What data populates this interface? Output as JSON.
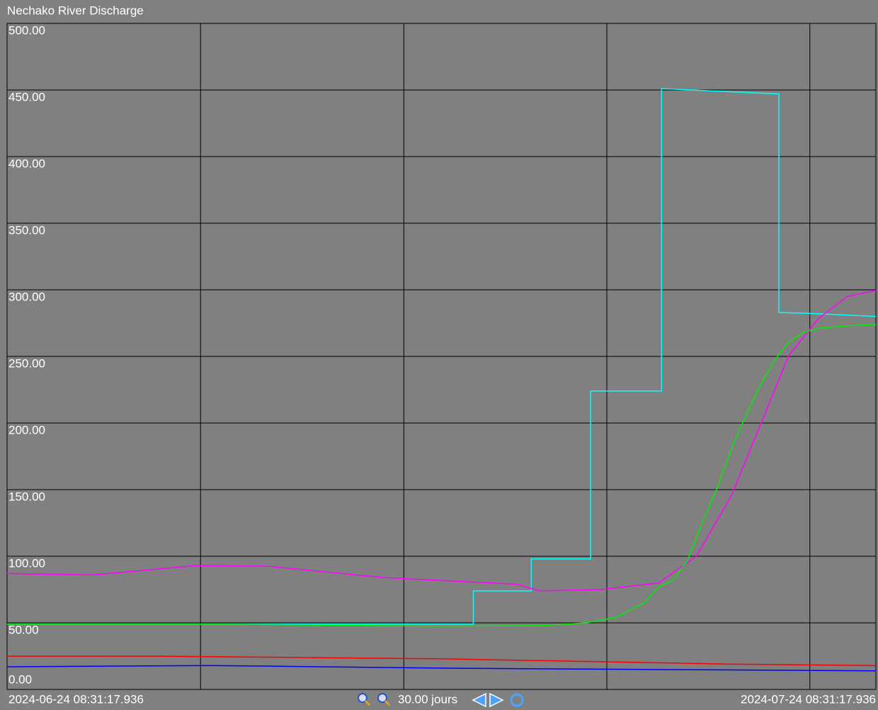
{
  "chart_data": {
    "type": "line",
    "title": "Nechako River Discharge",
    "xlim": [
      0,
      30
    ],
    "xticks": [
      {
        "value": 0,
        "label": "2024-06-24 08:31:17.936"
      },
      {
        "value": 30,
        "label": "2024-07-24 08:31:17.936"
      }
    ],
    "xgrid": [
      6.68,
      13.7,
      20.71,
      27.72
    ],
    "ylim": [
      0,
      500
    ],
    "yticks": [
      {
        "value": 0,
        "label": "0.00"
      },
      {
        "value": 50,
        "label": "50.00"
      },
      {
        "value": 100,
        "label": "100.00"
      },
      {
        "value": 150,
        "label": "150.00"
      },
      {
        "value": 200,
        "label": "200.00"
      },
      {
        "value": 250,
        "label": "250.00"
      },
      {
        "value": 300,
        "label": "300.00"
      },
      {
        "value": 350,
        "label": "350.00"
      },
      {
        "value": 400,
        "label": "400.00"
      },
      {
        "value": 450,
        "label": "450.00"
      },
      {
        "value": 500,
        "label": "500.00"
      }
    ],
    "grid": true,
    "span_label": "30.00 jours",
    "series": [
      {
        "color": "#00ffff",
        "x": [
          0,
          16.1,
          16.1,
          18.1,
          18.1,
          20.15,
          20.15,
          22.6,
          22.6,
          26.65,
          26.65,
          28,
          30
        ],
        "values": [
          49,
          49,
          74,
          74,
          98,
          98,
          224,
          224,
          451,
          447,
          283,
          282,
          280
        ]
      },
      {
        "color": "#ff00ff",
        "x": [
          0,
          3,
          6.5,
          9,
          13,
          17.6,
          18.4,
          20.5,
          22.5,
          23.8,
          25,
          26,
          27,
          28,
          29,
          30
        ],
        "values": [
          87,
          86,
          93,
          92.5,
          84,
          79,
          74,
          75,
          80,
          100,
          145,
          198,
          251,
          278,
          295,
          299.5
        ]
      },
      {
        "color": "#00ee00",
        "x": [
          0,
          7.5,
          15,
          18.5,
          20,
          21,
          22,
          22.5,
          23,
          23.5,
          24,
          24.5,
          25,
          25.5,
          26,
          26.5,
          27,
          27.5,
          28,
          29,
          30
        ],
        "values": [
          49,
          49,
          47.5,
          48,
          50,
          54,
          65,
          77,
          82,
          97,
          125,
          150,
          180,
          205,
          228,
          247,
          261,
          268,
          271,
          273,
          274
        ]
      },
      {
        "color": "#ff0000",
        "x": [
          0,
          5,
          10,
          15,
          20,
          25,
          30
        ],
        "values": [
          25,
          25,
          24,
          23,
          21,
          19,
          18
        ]
      },
      {
        "color": "#0000ff",
        "x": [
          0,
          7,
          15,
          22,
          30
        ],
        "values": [
          17,
          18,
          16,
          15,
          14
        ]
      }
    ]
  }
}
